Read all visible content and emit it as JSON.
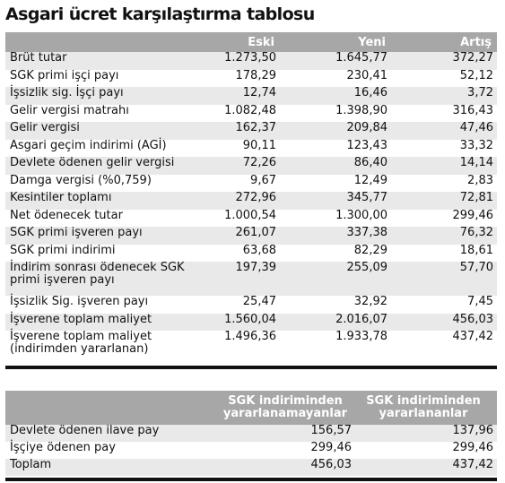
{
  "title": "Asgari ücret karşılaştırma tablosu",
  "main_table": {
    "columns": [
      "",
      "Eski",
      "Yeni",
      "Artış"
    ],
    "rows": [
      {
        "label": "Brüt tutar",
        "eski": "1.273,50",
        "yeni": "1.645,77",
        "artis": "372,27"
      },
      {
        "label": "SGK  primi işçi payı",
        "eski": "178,29",
        "yeni": "230,41",
        "artis": "52,12"
      },
      {
        "label": "İşsizlik sig. İşçi payı",
        "eski": "12,74",
        "yeni": "16,46",
        "artis": "3,72"
      },
      {
        "label": "Gelir vergisi matrahı",
        "eski": "1.082,48",
        "yeni": "1.398,90",
        "artis": "316,43"
      },
      {
        "label": "Gelir vergisi",
        "eski": "162,37",
        "yeni": "209,84",
        "artis": "47,46"
      },
      {
        "label": "Asgari geçim indirimi (AGİ)",
        "eski": "90,11",
        "yeni": "123,43",
        "artis": "33,32"
      },
      {
        "label": "Devlete ödenen gelir vergisi",
        "eski": "72,26",
        "yeni": "86,40",
        "artis": "14,14"
      },
      {
        "label": "Damga vergisi (%0,759)",
        "eski": "9,67",
        "yeni": "12,49",
        "artis": "2,83"
      },
      {
        "label": "Kesintiler toplamı",
        "eski": "272,96",
        "yeni": "345,77",
        "artis": "72,81"
      },
      {
        "label": "Net ödenecek tutar",
        "eski": "1.000,54",
        "yeni": "1.300,00",
        "artis": "299,46"
      },
      {
        "label": "SGK primi işveren payı",
        "eski": "261,07",
        "yeni": "337,38",
        "artis": "76,32"
      },
      {
        "label": "SGK primi indirimi",
        "eski": "63,68",
        "yeni": "82,29",
        "artis": "18,61"
      },
      {
        "label": "İndirim sonrası ödenecek SGK primi işveren payı",
        "eski": "197,39",
        "yeni": "255,09",
        "artis": "57,70"
      },
      {
        "label": "İşsizlik Sig. işveren payı",
        "eski": "25,47",
        "yeni": "32,92",
        "artis": "7,45"
      },
      {
        "label": "İşverene toplam maliyet",
        "eski": "1.560,04",
        "yeni": "2.016,07",
        "artis": "456,03"
      },
      {
        "label": "İşverene toplam maliyet (indirimden yararlanan)",
        "eski": "1.496,36",
        "yeni": "1.933,78",
        "artis": "437,42"
      }
    ]
  },
  "second_table": {
    "columns": [
      "",
      "SGK indiriminden yararlanamayanlar",
      "SGK indiriminden yararlananlar"
    ],
    "rows": [
      {
        "label": "Devlete ödenen ilave pay",
        "a": "156,57",
        "b": "137,96"
      },
      {
        "label": "İşçiye ödenen pay",
        "a": "299,46",
        "b": "299,46"
      },
      {
        "label": "Toplam",
        "a": "456,03",
        "b": "437,42"
      }
    ]
  }
}
